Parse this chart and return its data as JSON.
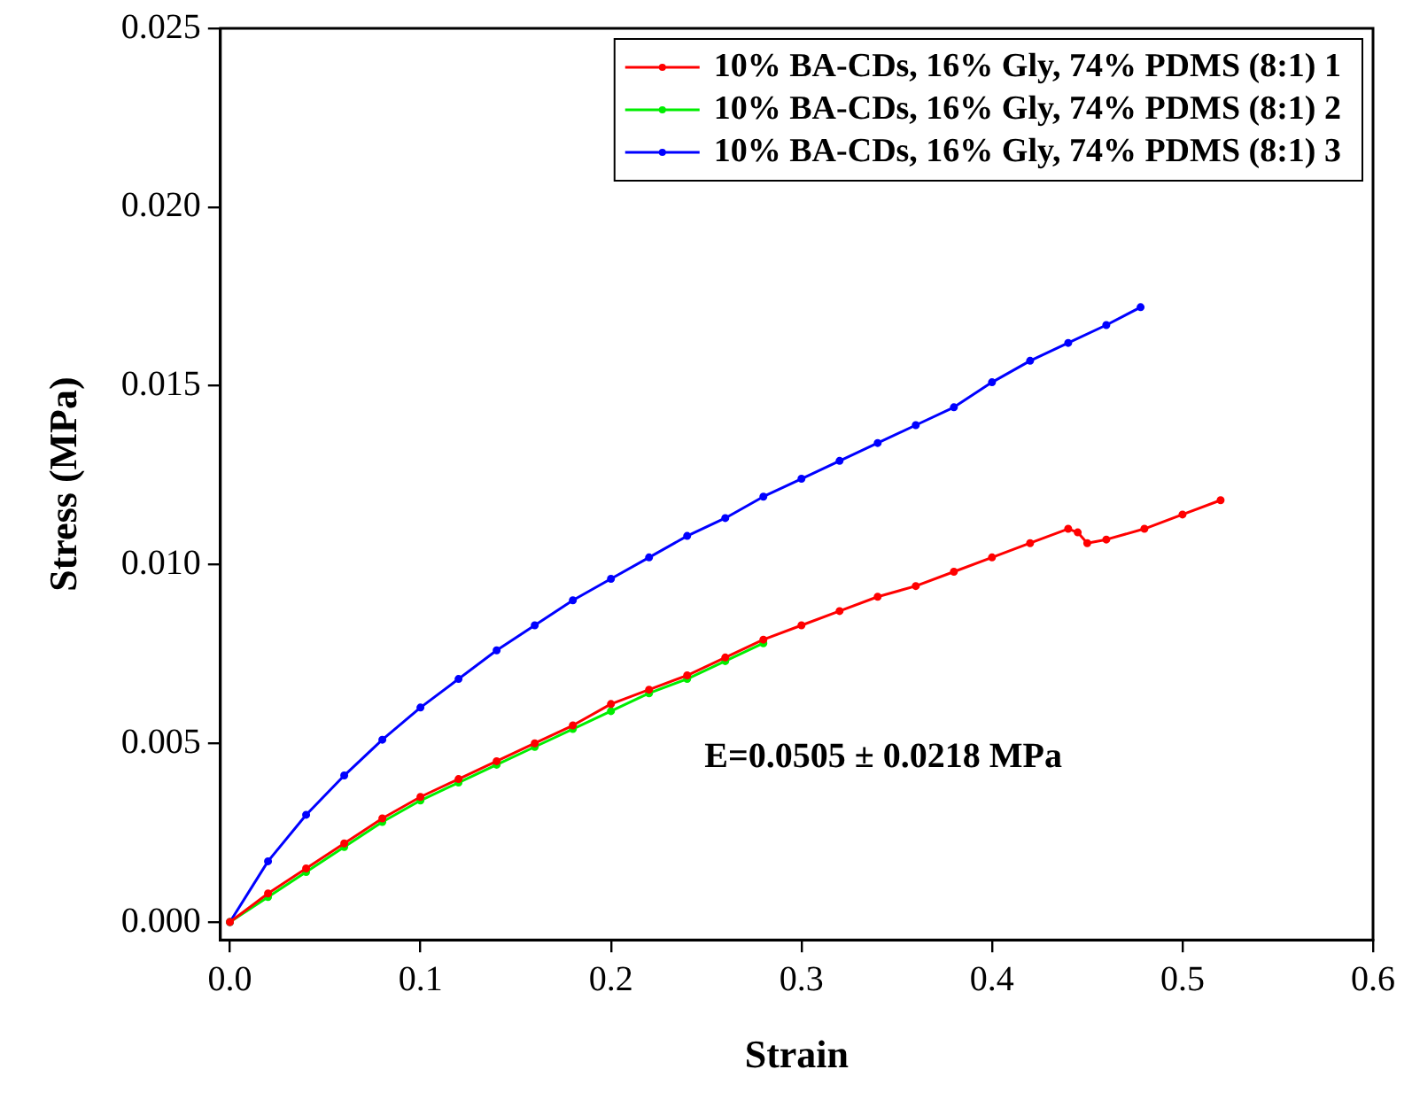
{
  "chart_data": {
    "type": "line",
    "xlabel": "Strain",
    "ylabel": "Stress (MPa)",
    "xlim": [
      -0.005,
      0.6
    ],
    "xticks": [
      {
        "value": 0,
        "label": "0.0"
      },
      {
        "value": 0.1,
        "label": "0.1"
      },
      {
        "value": 0.2,
        "label": "0.2"
      },
      {
        "value": 0.3,
        "label": "0.3"
      },
      {
        "value": 0.4,
        "label": "0.4"
      },
      {
        "value": 0.5,
        "label": "0.5"
      },
      {
        "value": 0.6,
        "label": "0.6"
      }
    ],
    "ylim": [
      -0.0005,
      0.025
    ],
    "yticks": [
      {
        "value": 0,
        "label": "0.000"
      },
      {
        "value": 0.005,
        "label": "0.005"
      },
      {
        "value": 0.01,
        "label": "0.010"
      },
      {
        "value": 0.015,
        "label": "0.015"
      },
      {
        "value": 0.02,
        "label": "0.020"
      },
      {
        "value": 0.025,
        "label": "0.025"
      }
    ],
    "grid": false,
    "legend": "top right",
    "marker": "circle",
    "line_style": "solid",
    "annotations": [
      "E=0.0505 ± 0.0218 MPa"
    ],
    "series": [
      {
        "name": "10% BA-CDs, 16% Gly, 74% PDMS (8:1) 1",
        "color": "#ff0000",
        "x": [
          0,
          0.02,
          0.04,
          0.06,
          0.08,
          0.1,
          0.12,
          0.14,
          0.16,
          0.18,
          0.2,
          0.22,
          0.24,
          0.26,
          0.28,
          0.3,
          0.32,
          0.34,
          0.36,
          0.38,
          0.4,
          0.42,
          0.44,
          0.445,
          0.45,
          0.46,
          0.48,
          0.5,
          0.52
        ],
        "values": [
          0,
          0.0008,
          0.0015,
          0.0022,
          0.0029,
          0.0035,
          0.004,
          0.0045,
          0.005,
          0.0055,
          0.0061,
          0.0065,
          0.0069,
          0.0074,
          0.0079,
          0.0083,
          0.0087,
          0.0091,
          0.0094,
          0.0098,
          0.0102,
          0.0106,
          0.011,
          0.0109,
          0.0106,
          0.0107,
          0.011,
          0.0114,
          0.0118
        ]
      },
      {
        "name": "10% BA-CDs, 16% Gly, 74% PDMS (8:1) 2",
        "color": "#00ee00",
        "x": [
          0,
          0.02,
          0.04,
          0.06,
          0.08,
          0.1,
          0.12,
          0.14,
          0.16,
          0.18,
          0.2,
          0.22,
          0.24,
          0.26,
          0.28
        ],
        "values": [
          0,
          0.0007,
          0.0014,
          0.0021,
          0.0028,
          0.0034,
          0.0039,
          0.0044,
          0.0049,
          0.0054,
          0.0059,
          0.0064,
          0.0068,
          0.0073,
          0.0078
        ]
      },
      {
        "name": "10% BA-CDs, 16% Gly, 74% PDMS (8:1) 3",
        "color": "#0000ff",
        "x": [
          0,
          0.02,
          0.04,
          0.06,
          0.08,
          0.1,
          0.12,
          0.14,
          0.16,
          0.18,
          0.2,
          0.22,
          0.24,
          0.26,
          0.28,
          0.3,
          0.32,
          0.34,
          0.36,
          0.38,
          0.4,
          0.42,
          0.44,
          0.46,
          0.478
        ],
        "values": [
          0,
          0.0017,
          0.003,
          0.0041,
          0.0051,
          0.006,
          0.0068,
          0.0076,
          0.0083,
          0.009,
          0.0096,
          0.0102,
          0.0108,
          0.0113,
          0.0119,
          0.0124,
          0.0129,
          0.0134,
          0.0139,
          0.0144,
          0.0151,
          0.0157,
          0.0162,
          0.0167,
          0.0172
        ]
      }
    ]
  }
}
